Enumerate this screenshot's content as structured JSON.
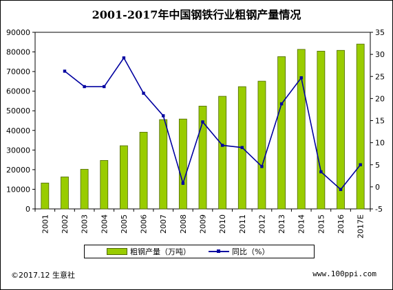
{
  "title": "2001-2017年中国钢铁行业粗钢产量情况",
  "legend": {
    "bar_label": "粗钢产量（万吨）",
    "line_label": "同比（%）"
  },
  "footer": {
    "left": "©2017.12 生意社",
    "right": "www.100ppi.com"
  },
  "colors": {
    "bar_fill": "#99cc00",
    "bar_edge": "#4d6600",
    "line": "#0000a0",
    "axis": "#000000",
    "background": "#ffffff"
  },
  "chart_data": {
    "type": "bar",
    "title": "2001-2017年中国钢铁行业粗钢产量情况",
    "categories": [
      "2001",
      "2002",
      "2003",
      "2004",
      "2005",
      "2006",
      "2007",
      "2008",
      "2009",
      "2010",
      "2011",
      "2012",
      "2013",
      "2014",
      "2015",
      "2016",
      "2017E"
    ],
    "y_left": {
      "min": 0,
      "max": 90000,
      "ticks": [
        0,
        10000,
        20000,
        30000,
        40000,
        50000,
        60000,
        70000,
        80000,
        90000
      ]
    },
    "y_right": {
      "min": -5,
      "max": 35,
      "ticks": [
        -5,
        0,
        5,
        10,
        15,
        20,
        25,
        30,
        35
      ]
    },
    "grid": false,
    "legend_position": "bottom",
    "series": [
      {
        "name": "粗钢产量（万吨）",
        "type": "bar",
        "axis": "left",
        "values": [
          13200,
          16300,
          20200,
          24700,
          32200,
          39100,
          45500,
          45800,
          52400,
          57400,
          62300,
          65100,
          77600,
          81300,
          80400,
          80800,
          84000
        ]
      },
      {
        "name": "同比（%）",
        "type": "line",
        "axis": "right",
        "values": [
          null,
          26.2,
          22.7,
          22.7,
          29.2,
          21.2,
          16.1,
          0.8,
          14.7,
          9.4,
          8.9,
          4.6,
          18.8,
          24.7,
          3.4,
          -0.6,
          5.0
        ]
      }
    ]
  }
}
